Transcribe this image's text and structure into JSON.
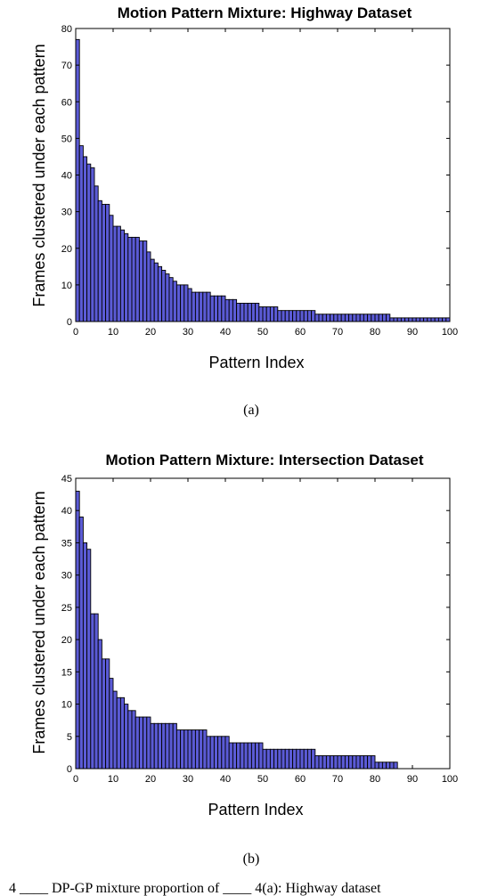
{
  "colors": {
    "bar_fill": "#5b5bd6",
    "bar_stroke": "#000000",
    "axis": "#000000",
    "background": "#ffffff"
  },
  "chart_data": [
    {
      "type": "bar",
      "title": "Motion Pattern Mixture: Highway Dataset",
      "xlabel": "Pattern Index",
      "ylabel": "Frames clustered under each pattern",
      "xlim": [
        0,
        100
      ],
      "ylim": [
        0,
        80
      ],
      "xticks": [
        "0",
        "10",
        "20",
        "30",
        "40",
        "50",
        "60",
        "70",
        "80",
        "90",
        "100"
      ],
      "yticks": [
        "0",
        "10",
        "20",
        "30",
        "40",
        "50",
        "60",
        "70",
        "80"
      ],
      "grid": false,
      "subfigure_label": "(a)",
      "values": [
        77,
        48,
        45,
        43,
        42,
        37,
        33,
        32,
        32,
        29,
        26,
        26,
        25,
        24,
        23,
        23,
        23,
        22,
        22,
        19,
        17,
        16,
        15,
        14,
        13,
        12,
        11,
        10,
        10,
        10,
        9,
        8,
        8,
        8,
        8,
        8,
        7,
        7,
        7,
        7,
        6,
        6,
        6,
        5,
        5,
        5,
        5,
        5,
        5,
        4,
        4,
        4,
        4,
        4,
        3,
        3,
        3,
        3,
        3,
        3,
        3,
        3,
        3,
        3,
        2,
        2,
        2,
        2,
        2,
        2,
        2,
        2,
        2,
        2,
        2,
        2,
        2,
        2,
        2,
        2,
        2,
        2,
        2,
        2,
        1,
        1,
        1,
        1,
        1,
        1,
        1,
        1,
        1,
        1,
        1,
        1,
        1,
        1,
        1,
        1
      ]
    },
    {
      "type": "bar",
      "title": "Motion Pattern Mixture: Intersection Dataset",
      "xlabel": "Pattern Index",
      "ylabel": "Frames clustered under each pattern",
      "xlim": [
        0,
        100
      ],
      "ylim": [
        0,
        45
      ],
      "xticks": [
        "0",
        "10",
        "20",
        "30",
        "40",
        "50",
        "60",
        "70",
        "80",
        "90",
        "100"
      ],
      "yticks": [
        "0",
        "5",
        "10",
        "15",
        "20",
        "25",
        "30",
        "35",
        "40",
        "45"
      ],
      "grid": false,
      "subfigure_label": "(b)",
      "values": [
        43,
        39,
        35,
        34,
        24,
        24,
        20,
        17,
        17,
        14,
        12,
        11,
        11,
        10,
        9,
        9,
        8,
        8,
        8,
        8,
        7,
        7,
        7,
        7,
        7,
        7,
        7,
        6,
        6,
        6,
        6,
        6,
        6,
        6,
        6,
        5,
        5,
        5,
        5,
        5,
        5,
        4,
        4,
        4,
        4,
        4,
        4,
        4,
        4,
        4,
        3,
        3,
        3,
        3,
        3,
        3,
        3,
        3,
        3,
        3,
        3,
        3,
        3,
        3,
        2,
        2,
        2,
        2,
        2,
        2,
        2,
        2,
        2,
        2,
        2,
        2,
        2,
        2,
        2,
        2,
        1,
        1,
        1,
        1,
        1,
        1
      ]
    }
  ],
  "caption_fragment": "4 ____ DP-GP mixture proportion of ____ 4(a): Highway dataset"
}
